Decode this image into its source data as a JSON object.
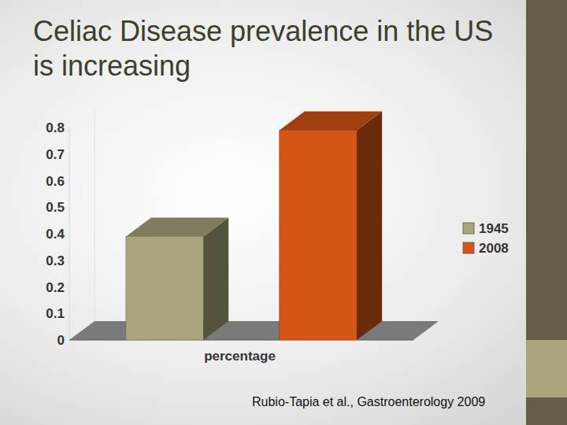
{
  "chart_data": {
    "type": "bar",
    "title": "Celiac Disease prevalence in the US is increasing",
    "categories": [
      "percentage"
    ],
    "series": [
      {
        "name": "1945",
        "color": "#a8a57c",
        "values": [
          0.39
        ]
      },
      {
        "name": "2008",
        "color": "#d55515",
        "values": [
          0.79
        ]
      }
    ],
    "ylim": [
      0,
      0.8
    ],
    "yticks": [
      0,
      0.1,
      0.2,
      0.3,
      0.4,
      0.5,
      0.6,
      0.7,
      0.8
    ],
    "grid": false,
    "legend": "right",
    "annotations": [
      "Rubio-Tapia et al., Gastroenterology 2009"
    ]
  }
}
